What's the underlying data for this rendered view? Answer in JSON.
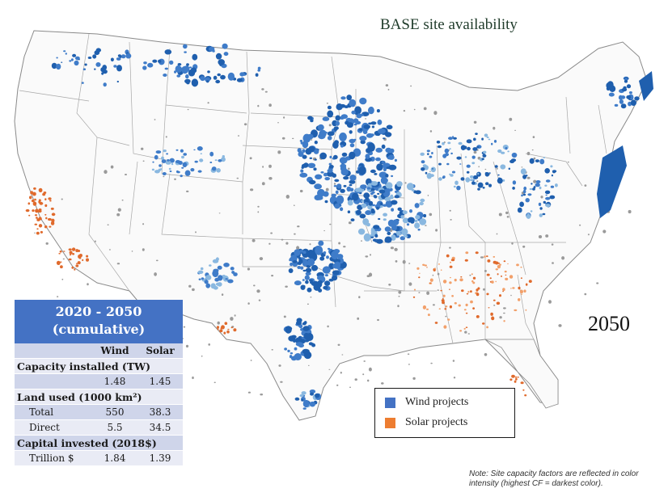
{
  "title": "BASE site availability",
  "year_label": "2050",
  "legend": {
    "items": [
      {
        "label": "Wind projects",
        "color": "#4472c4"
      },
      {
        "label": "Solar projects",
        "color": "#ed7d31"
      }
    ]
  },
  "note": "Note: Site capacity factors are reflected in color intensity (highest CF = darkest color).",
  "table": {
    "header_line1": "2020 - 2050",
    "header_line2": "(cumulative)",
    "col_wind": "Wind",
    "col_solar": "Solar",
    "sections": {
      "capacity": {
        "label": "Capacity installed (TW)",
        "rows": [
          {
            "label": "",
            "wind": "1.48",
            "solar": "1.45"
          }
        ]
      },
      "land": {
        "label": "Land used (1000 km²)",
        "rows": [
          {
            "label": "Total",
            "wind": "550",
            "solar": "38.3"
          },
          {
            "label": "Direct",
            "wind": "5.5",
            "solar": "34.5"
          }
        ]
      },
      "capital": {
        "label": "Capital invested (2018$)",
        "rows": [
          {
            "label": "Trillion $",
            "wind": "1.84",
            "solar": "1.39"
          }
        ]
      }
    }
  },
  "colors": {
    "wind_dark": "#1f5fae",
    "wind_mid": "#3f7cc9",
    "wind_light": "#8ab8e0",
    "solar": "#e06a2c",
    "urban": "#9a9a9a",
    "border": "#8a8a8a"
  }
}
